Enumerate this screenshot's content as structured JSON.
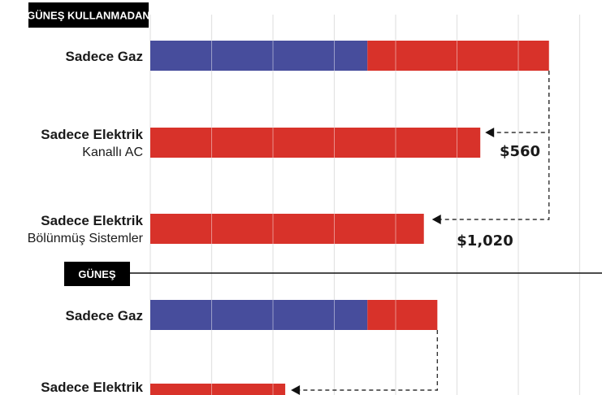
{
  "chart_data": {
    "type": "bar",
    "orientation": "horizontal",
    "stacked": true,
    "title": "",
    "xlabel": "",
    "ylabel": "",
    "xlim": [
      0,
      3700
    ],
    "grid": true,
    "legend": "none",
    "colors": {
      "gas": "#474d9c",
      "electric": "#d8322a"
    },
    "groups": [
      {
        "label": "GÜNEŞ KULLANMADAN",
        "rows": [
          {
            "label": "Sadece Gaz",
            "sublabel": "",
            "gas": 1770,
            "electric": 1480
          },
          {
            "label": "Sadece Elektrik",
            "sublabel": "Kanallı AC",
            "gas": 0,
            "electric": 2690
          },
          {
            "label": "Sadece Elektrik",
            "sublabel": "Bölünmüş Sistemler",
            "gas": 0,
            "electric": 2230
          }
        ],
        "annotations": [
          "$560",
          "$1,020"
        ]
      },
      {
        "label": "GÜNEŞ",
        "rows": [
          {
            "label": "Sadece Gaz",
            "sublabel": "",
            "gas": 1770,
            "electric": 570
          },
          {
            "label": "Sadece Elektrik",
            "sublabel": "",
            "gas": 0,
            "electric": 1100
          }
        ],
        "annotations": []
      }
    ]
  }
}
